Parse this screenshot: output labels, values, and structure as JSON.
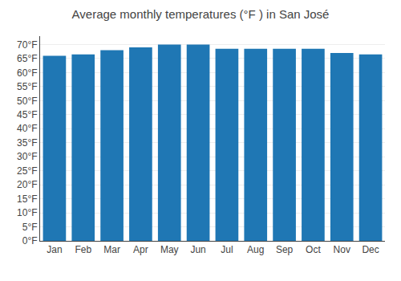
{
  "chart_data": {
    "type": "bar",
    "title": "Average monthly temperatures (°F ) in San José",
    "categories": [
      "Jan",
      "Feb",
      "Mar",
      "Apr",
      "May",
      "Jun",
      "Jul",
      "Aug",
      "Sep",
      "Oct",
      "Nov",
      "Dec"
    ],
    "values": [
      66,
      66.5,
      68,
      69,
      70,
      70,
      68.5,
      68.5,
      68.5,
      68.5,
      67,
      66.5
    ],
    "ylim": [
      0,
      73
    ],
    "yticks": [
      {
        "value": 0,
        "label": "0°F"
      },
      {
        "value": 5,
        "label": "5°F"
      },
      {
        "value": 10,
        "label": "10°F"
      },
      {
        "value": 15,
        "label": "15°F"
      },
      {
        "value": 20,
        "label": "20°F"
      },
      {
        "value": 25,
        "label": "25°F"
      },
      {
        "value": 30,
        "label": "30°F"
      },
      {
        "value": 35,
        "label": "35°F"
      },
      {
        "value": 40,
        "label": "40°F"
      },
      {
        "value": 45,
        "label": "45°F"
      },
      {
        "value": 50,
        "label": "50°F"
      },
      {
        "value": 55,
        "label": "55°F"
      },
      {
        "value": 60,
        "label": "60°F"
      },
      {
        "value": 65,
        "label": "65°F"
      },
      {
        "value": 70,
        "label": "70°F"
      }
    ],
    "grid": true
  }
}
